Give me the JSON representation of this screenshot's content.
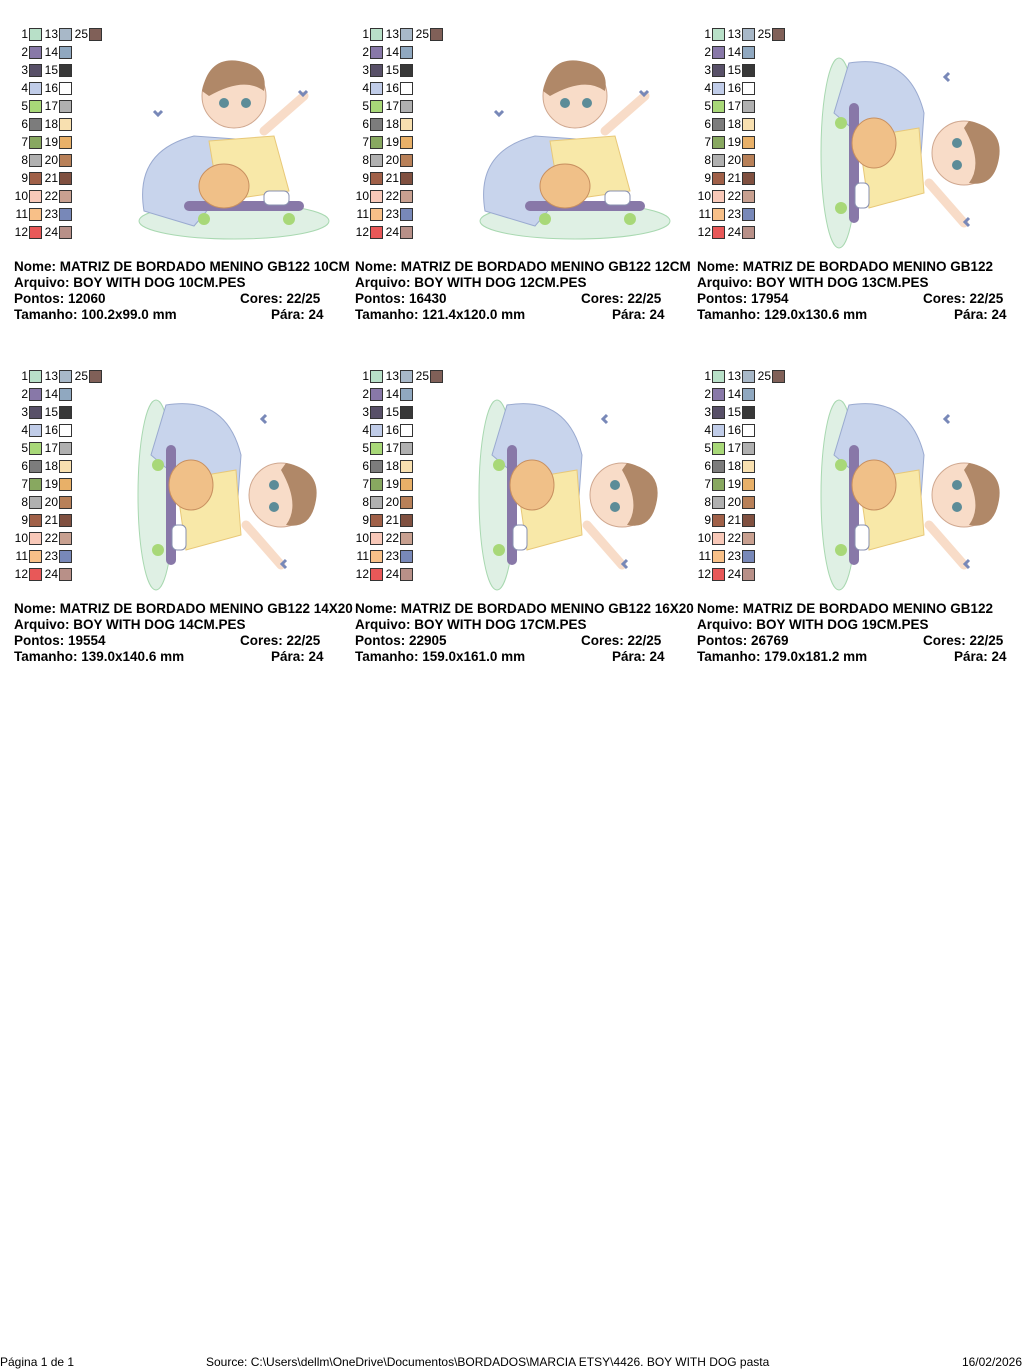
{
  "palette": [
    {
      "number": "1",
      "color": "#b8e0c8"
    },
    {
      "number": "2",
      "color": "#8878a8"
    },
    {
      "number": "3",
      "color": "#585068"
    },
    {
      "number": "4",
      "color": "#c0cce8"
    },
    {
      "number": "5",
      "color": "#a8d878"
    },
    {
      "number": "6",
      "color": "#7c7c7c"
    },
    {
      "number": "7",
      "color": "#88a860"
    },
    {
      "number": "8",
      "color": "#b0b0b0"
    },
    {
      "number": "9",
      "color": "#a06048"
    },
    {
      "number": "10",
      "color": "#f8c8b8"
    },
    {
      "number": "11",
      "color": "#f8c088"
    },
    {
      "number": "12",
      "color": "#e85858"
    },
    {
      "number": "13",
      "color": "#a8b8c8"
    },
    {
      "number": "14",
      "color": "#90a8c0"
    },
    {
      "number": "15",
      "color": "#383838"
    },
    {
      "number": "16",
      "color": "#ffffff"
    },
    {
      "number": "17",
      "color": "#b0b0b0"
    },
    {
      "number": "18",
      "color": "#f8e0b0"
    },
    {
      "number": "19",
      "color": "#e8b068"
    },
    {
      "number": "20",
      "color": "#b88058"
    },
    {
      "number": "21",
      "color": "#805040"
    },
    {
      "number": "22",
      "color": "#c8a090"
    },
    {
      "number": "23",
      "color": "#7888b8"
    },
    {
      "number": "24",
      "color": "#b89088"
    },
    {
      "number": "25",
      "color": "#806058"
    }
  ],
  "cards": [
    {
      "nome": "Nome: MATRIZ DE BORDADO MENINO GB122 10CM",
      "arquivo": "Arquivo: BOY WITH DOG 10CM.PES",
      "pontos": "Pontos: 12060",
      "cores": "Cores: 22/25",
      "tamanho": "Tamanho: 100.2x99.0 mm",
      "para": "Pára: 24"
    },
    {
      "nome": "Nome: MATRIZ DE BORDADO MENINO GB122 12CM",
      "arquivo": "Arquivo: BOY WITH DOG 12CM.PES",
      "pontos": "Pontos: 16430",
      "cores": "Cores: 22/25",
      "tamanho": "Tamanho: 121.4x120.0 mm",
      "para": "Pára: 24"
    },
    {
      "nome": "Nome: MATRIZ DE BORDADO MENINO GB122",
      "arquivo": "Arquivo: BOY WITH DOG 13CM.PES",
      "pontos": "Pontos: 17954",
      "cores": "Cores: 22/25",
      "tamanho": "Tamanho: 129.0x130.6 mm",
      "para": "Pára: 24"
    },
    {
      "nome": "Nome: MATRIZ DE BORDADO MENINO GB122 14X20",
      "arquivo": "Arquivo: BOY WITH DOG 14CM.PES",
      "pontos": "Pontos: 19554",
      "cores": "Cores: 22/25",
      "tamanho": "Tamanho: 139.0x140.6 mm",
      "para": "Pára: 24"
    },
    {
      "nome": "Nome: MATRIZ DE BORDADO MENINO GB122 16X20",
      "arquivo": "Arquivo: BOY WITH DOG 17CM.PES",
      "pontos": "Pontos: 22905",
      "cores": "Cores: 22/25",
      "tamanho": "Tamanho: 159.0x161.0 mm",
      "para": "Pára: 24"
    },
    {
      "nome": "Nome: MATRIZ DE BORDADO MENINO GB122",
      "arquivo": "Arquivo: BOY WITH DOG 19CM.PES",
      "pontos": "Pontos: 26769",
      "cores": "Cores: 22/25",
      "tamanho": "Tamanho: 179.0x181.2 mm",
      "para": "Pára: 24"
    }
  ],
  "footer": {
    "page": "Página 1 de 1",
    "source": "Source: C:\\Users\\dellm\\OneDrive\\Documentos\\BORDADOS\\MARCIA ETSY\\4426. BOY WITH DOG pasta",
    "date": "16/02/2026"
  }
}
